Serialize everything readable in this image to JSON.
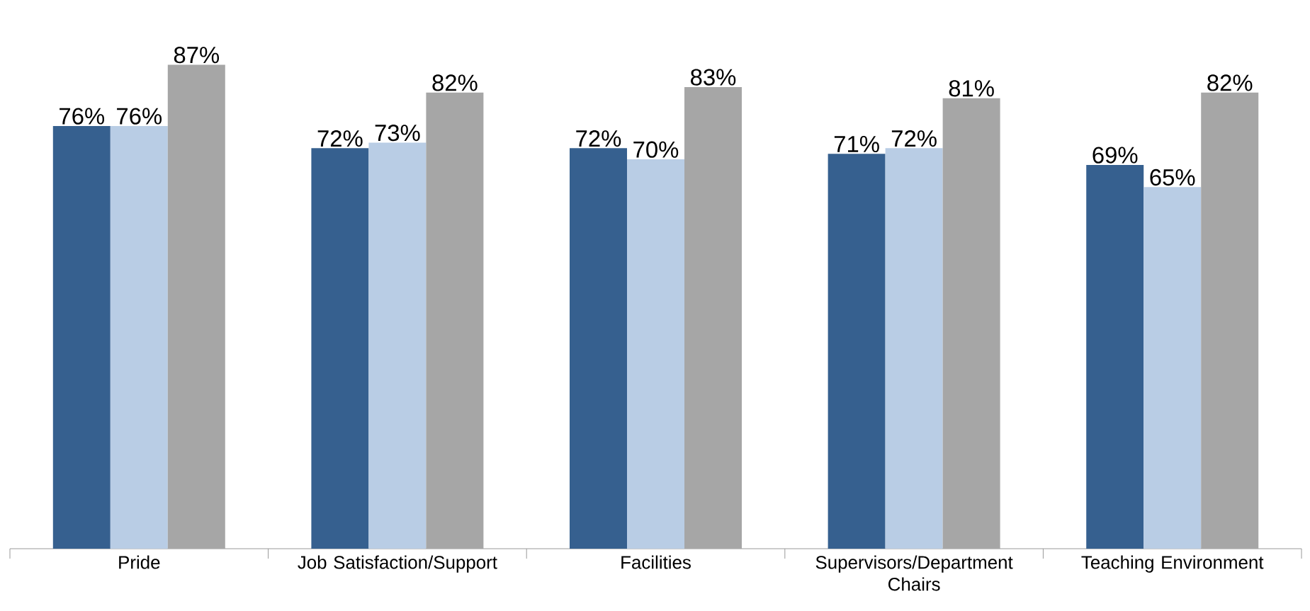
{
  "chart_data": {
    "type": "bar",
    "categories": [
      "Pride",
      "Job Satisfaction/Support",
      "Facilities",
      "Supervisors/Department Chairs",
      "Teaching Environment"
    ],
    "series": [
      {
        "color": "#36608f",
        "values": [
          76,
          72,
          72,
          71,
          69
        ],
        "value_labels": [
          "76%",
          "72%",
          "72%",
          "71%",
          "69%"
        ]
      },
      {
        "color": "#b9cde5",
        "values": [
          76,
          73,
          70,
          72,
          65
        ],
        "value_labels": [
          "76%",
          "73%",
          "70%",
          "72%",
          "65%"
        ]
      },
      {
        "color": "#a6a6a6",
        "values": [
          87,
          82,
          83,
          81,
          82
        ],
        "value_labels": [
          "87%",
          "82%",
          "83%",
          "81%",
          "82%"
        ]
      }
    ],
    "grid": false,
    "legend": false
  }
}
